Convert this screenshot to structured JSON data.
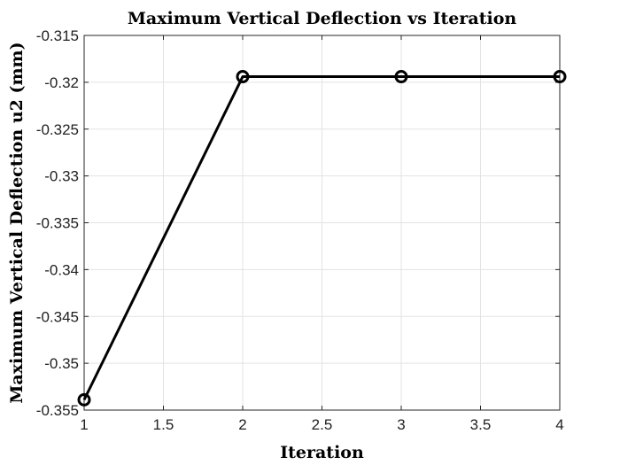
{
  "chart_data": {
    "type": "line",
    "title": "Maximum Vertical Deflection vs Iteration",
    "xlabel": "Iteration",
    "ylabel": "Maximum Vertical Deflection u2 (mm)",
    "xlim": [
      1,
      4
    ],
    "ylim": [
      -0.355,
      -0.315
    ],
    "xticks": [
      1,
      1.5,
      2,
      2.5,
      3,
      3.5,
      4
    ],
    "xtick_labels": [
      "1",
      "1.5",
      "2",
      "2.5",
      "3",
      "3.5",
      "4"
    ],
    "yticks": [
      -0.355,
      -0.35,
      -0.345,
      -0.34,
      -0.335,
      -0.33,
      -0.325,
      -0.32,
      -0.315
    ],
    "ytick_labels": [
      "-0.355",
      "-0.35",
      "-0.345",
      "-0.34",
      "-0.335",
      "-0.33",
      "-0.325",
      "-0.32",
      "-0.315"
    ],
    "grid": true,
    "series": [
      {
        "x": [
          1,
          2,
          3,
          4
        ],
        "values": [
          -0.3539,
          -0.3194,
          -0.3194,
          -0.3194
        ],
        "color": "#000000",
        "marker": "circle"
      }
    ]
  }
}
